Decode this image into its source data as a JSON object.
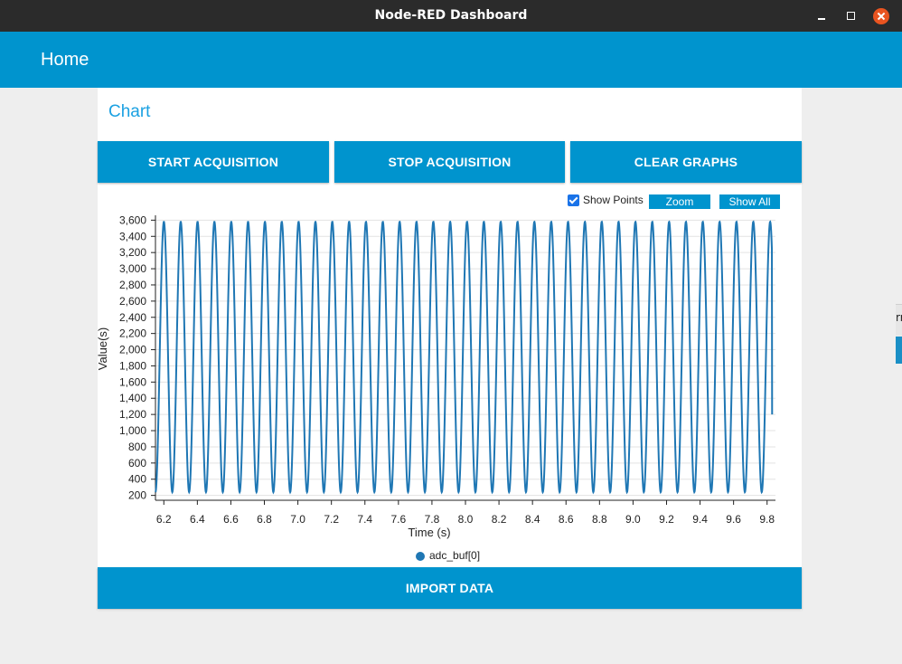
{
  "window": {
    "title": "Node-RED Dashboard"
  },
  "header": {
    "title": "Home"
  },
  "edge": {
    "text": "rr"
  },
  "card": {
    "title": "Chart"
  },
  "buttons": {
    "start": "START ACQUISITION",
    "stop": "STOP ACQUISITION",
    "clear": "CLEAR GRAPHS",
    "import": "IMPORT DATA"
  },
  "chart_options": {
    "show_points_checked": true,
    "show_points_label": "Show Points",
    "zoom_label": "Zoom",
    "show_all_label": "Show All"
  },
  "colors": {
    "accent": "#0094ce",
    "series": "#1f77b4",
    "title": "#1ba1e2"
  },
  "chart_data": {
    "type": "line",
    "xlabel": "Time (s)",
    "ylabel": "Value(s)",
    "xlim": [
      6.15,
      9.85
    ],
    "ylim": [
      140,
      3660
    ],
    "x_ticks": [
      "6.2",
      "6.4",
      "6.6",
      "6.8",
      "7.0",
      "7.2",
      "7.4",
      "7.6",
      "7.8",
      "8.0",
      "8.2",
      "8.4",
      "8.6",
      "8.8",
      "9.0",
      "9.2",
      "9.4",
      "9.6",
      "9.8"
    ],
    "y_ticks": [
      "200",
      "400",
      "600",
      "800",
      "1,000",
      "1,200",
      "1,400",
      "1,600",
      "1,800",
      "2,000",
      "2,200",
      "2,400",
      "2,600",
      "2,800",
      "3,000",
      "3,200",
      "3,400",
      "3,600"
    ],
    "legend": "top-bottom-center",
    "grid": "horizontal",
    "series": [
      {
        "name": "adc_buf[0]",
        "waveform": "sine",
        "x_start": 6.15,
        "x_end": 9.83,
        "period_s": 0.1005,
        "min": 240,
        "max": 3580,
        "last_value": 1200
      }
    ]
  }
}
